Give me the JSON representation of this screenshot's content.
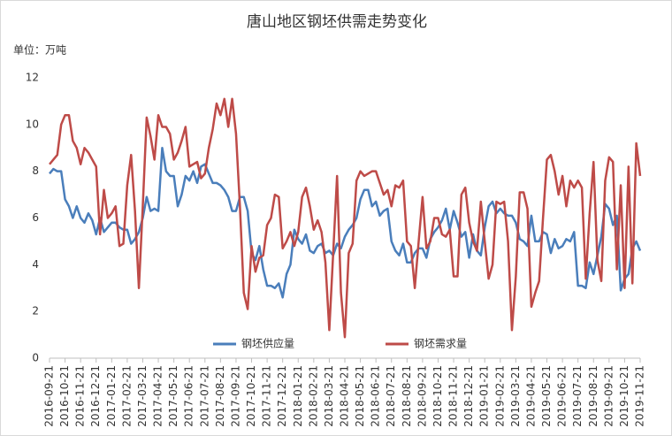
{
  "chart_data": {
    "type": "line",
    "title": "唐山地区钢坯供需走势变化",
    "unit_label": "单位：万吨",
    "categories": [
      "2016-09-21",
      null,
      null,
      null,
      "2016-10-21",
      null,
      null,
      null,
      "2016-11-21",
      null,
      null,
      null,
      "2016-12-21",
      null,
      null,
      null,
      "2017-01-21",
      null,
      null,
      null,
      "2017-02-21",
      null,
      null,
      null,
      "2017-03-21",
      null,
      null,
      null,
      "2017-04-21",
      null,
      null,
      null,
      "2017-05-21",
      null,
      null,
      null,
      "2017-06-21",
      null,
      null,
      null,
      "2017-07-21",
      null,
      null,
      null,
      "2017-08-21",
      null,
      null,
      null,
      "2017-09-21",
      null,
      null,
      null,
      "2017-10-21",
      null,
      null,
      null,
      "2017-11-21",
      null,
      null,
      null,
      "2017-12-21",
      null,
      null,
      null,
      "2018-01-21",
      null,
      null,
      null,
      "2018-02-21",
      null,
      null,
      null,
      "2018-03-21",
      null,
      null,
      null,
      "2018-04-21",
      null,
      null,
      null,
      "2018-05-21",
      null,
      null,
      null,
      "2018-06-21",
      null,
      null,
      null,
      "2018-07-21",
      null,
      null,
      null,
      "2018-08-21",
      null,
      null,
      null,
      "2018-09-21",
      null,
      null,
      null,
      "2018-10-21",
      null,
      null,
      null,
      "2018-11-21",
      null,
      null,
      null,
      "2018-12-21",
      null,
      null,
      null,
      "2019-01-21",
      null,
      null,
      null,
      "2019-02-21",
      null,
      null,
      null,
      "2019-03-21",
      null,
      null,
      null,
      "2019-04-21",
      null,
      null,
      null,
      "2019-05-21",
      null,
      null,
      null,
      "2019-06-21",
      null,
      null,
      null,
      "2019-07-21",
      null,
      null,
      null,
      "2019-08-21",
      null,
      null,
      null,
      "2019-09-21",
      null,
      null,
      null,
      "2019-10-21",
      null,
      null,
      null,
      "2019-11-21"
    ],
    "series": [
      {
        "name": "钢坯供应量",
        "color": "#4a7ebb",
        "values": [
          7.9,
          8.1,
          8.0,
          8.0,
          6.8,
          6.5,
          6.0,
          6.5,
          6.0,
          5.8,
          6.2,
          5.9,
          5.3,
          6.0,
          5.4,
          5.6,
          5.8,
          5.8,
          5.6,
          5.5,
          5.5,
          4.9,
          5.1,
          5.4,
          6.0,
          6.9,
          6.3,
          6.4,
          6.3,
          9.0,
          8.0,
          7.8,
          7.8,
          6.5,
          7.0,
          7.8,
          7.6,
          8.0,
          7.5,
          8.2,
          8.3,
          7.9,
          7.5,
          7.5,
          7.4,
          7.2,
          6.9,
          6.3,
          6.3,
          6.9,
          6.9,
          6.3,
          4.5,
          4.2,
          4.8,
          3.8,
          3.1,
          3.1,
          3.0,
          3.2,
          2.6,
          3.6,
          4.0,
          5.5,
          5.1,
          4.9,
          5.3,
          4.6,
          4.5,
          4.8,
          4.9,
          4.5,
          4.6,
          4.4,
          4.9,
          4.7,
          5.2,
          5.5,
          5.7,
          6.0,
          6.8,
          7.2,
          7.2,
          6.5,
          6.7,
          6.1,
          6.3,
          6.4,
          5.0,
          4.6,
          4.4,
          4.9,
          4.1,
          4.1,
          4.5,
          4.7,
          4.7,
          4.3,
          5.1,
          5.4,
          5.6,
          5.9,
          6.4,
          5.5,
          6.3,
          5.8,
          5.2,
          5.4,
          4.3,
          5.3,
          4.6,
          4.4,
          5.6,
          6.5,
          6.7,
          6.2,
          6.4,
          6.2,
          6.1,
          6.1,
          5.8,
          5.1,
          5.0,
          4.8,
          6.1,
          5.0,
          5.0,
          5.4,
          5.3,
          4.5,
          5.1,
          4.7,
          4.8,
          5.1,
          5.0,
          5.4,
          3.1,
          3.1,
          3.0,
          4.1,
          3.6,
          4.4,
          5.2,
          6.6,
          6.4,
          5.7,
          6.1,
          2.9,
          3.4,
          3.6,
          4.7,
          5.0,
          4.6
        ]
      },
      {
        "name": "钢坯需求量",
        "color": "#be4b48",
        "values": [
          8.3,
          8.5,
          8.7,
          10.0,
          10.4,
          10.4,
          9.3,
          9.0,
          8.3,
          9.0,
          8.8,
          8.5,
          8.2,
          5.3,
          7.2,
          6.0,
          6.2,
          6.5,
          4.8,
          4.9,
          7.4,
          8.7,
          6.3,
          3.0,
          6.5,
          10.3,
          9.5,
          8.5,
          10.4,
          9.9,
          9.9,
          9.6,
          8.5,
          8.8,
          9.3,
          9.9,
          8.2,
          8.3,
          8.4,
          7.7,
          7.9,
          9.0,
          9.8,
          10.9,
          10.4,
          11.1,
          9.9,
          11.1,
          9.6,
          6.5,
          2.8,
          2.1,
          4.8,
          3.7,
          4.3,
          4.4,
          5.7,
          6.0,
          7.0,
          6.9,
          4.7,
          5.0,
          5.4,
          4.8,
          5.4,
          6.9,
          7.3,
          6.5,
          5.5,
          5.9,
          5.4,
          4.1,
          1.2,
          4.5,
          7.8,
          2.8,
          0.9,
          4.5,
          4.9,
          7.6,
          8.0,
          7.8,
          7.9,
          8.0,
          8.0,
          7.5,
          7.0,
          7.2,
          6.5,
          7.4,
          7.3,
          7.6,
          5.0,
          4.8,
          3.0,
          5.0,
          6.9,
          4.7,
          5.0,
          6.0,
          6.0,
          5.3,
          5.2,
          5.5,
          3.5,
          3.5,
          7.0,
          7.3,
          5.8,
          5.0,
          4.6,
          6.7,
          5.0,
          3.4,
          4.0,
          6.7,
          6.6,
          6.7,
          5.0,
          1.2,
          3.5,
          7.1,
          7.1,
          6.4,
          2.2,
          2.8,
          3.3,
          6.0,
          8.5,
          8.7,
          8.0,
          7.0,
          7.8,
          6.5,
          7.6,
          7.3,
          7.6,
          7.3,
          3.4,
          6.2,
          8.4,
          4.2,
          3.3,
          7.6,
          8.6,
          8.4,
          3.8,
          7.4,
          3.0,
          8.2,
          3.2,
          9.2,
          7.8
        ]
      }
    ],
    "ylim": [
      0,
      12
    ],
    "yticks": [
      0,
      2,
      4,
      6,
      8,
      10,
      12
    ],
    "grid": false,
    "legend": "bottom"
  }
}
